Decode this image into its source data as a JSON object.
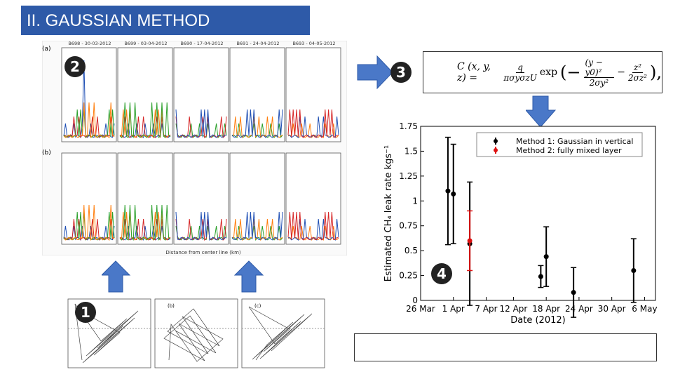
{
  "header": {
    "title": "II. GAUSSIAN METHOD"
  },
  "badges": [
    "1",
    "2",
    "3",
    "4"
  ],
  "profiles": {
    "panel_labels": [
      "(a)",
      "(b)"
    ],
    "flights": [
      "B698 - 30-03-2012",
      "B699 - 03-04-2012",
      "B690 - 17-04-2012",
      "B691 - 24-04-2012",
      "B693 - 04-05-2012"
    ],
    "xlabel": "Distance from center line (km)"
  },
  "maps": {
    "panel_labels": [
      "(a)",
      "(b)",
      "(c)"
    ]
  },
  "formula": {
    "lhs": "C (x, y, z) =",
    "num": "q",
    "den": "πσyσzU",
    "exp": "exp",
    "t1num": "(y − y0)²",
    "t1den": "2σy²",
    "t2num": "z²",
    "t2den": "2σz²"
  },
  "chart_data": {
    "type": "scatter",
    "xlabel": "Date (2012)",
    "ylabel": "Estimated CH₄ leak rate kgs⁻¹",
    "xlim": [
      "2012-03-26",
      "2012-05-08"
    ],
    "xticks": [
      {
        "value": "2012-03-26",
        "label": "26 Mar"
      },
      {
        "value": "2012-04-01",
        "label": "1 Apr"
      },
      {
        "value": "2012-04-07",
        "label": "7 Apr"
      },
      {
        "value": "2012-04-12",
        "label": "12 Apr"
      },
      {
        "value": "2012-04-18",
        "label": "18 Apr"
      },
      {
        "value": "2012-04-24",
        "label": "24 Apr"
      },
      {
        "value": "2012-04-30",
        "label": "30 Apr"
      },
      {
        "value": "2012-05-06",
        "label": "6 May"
      }
    ],
    "ylim": [
      0,
      1.75
    ],
    "yticks": [
      0,
      0.25,
      0.5,
      0.75,
      1,
      1.25,
      1.5,
      1.75
    ],
    "series": [
      {
        "name": "Method 1: Gaussian in vertical",
        "color": "#000000",
        "x": [
          "2012-03-31",
          "2012-04-01",
          "2012-04-04",
          "2012-04-17",
          "2012-04-18",
          "2012-04-23",
          "2012-05-04"
        ],
        "values": [
          1.1,
          1.07,
          0.57,
          0.24,
          0.44,
          0.08,
          0.3
        ],
        "errors": [
          0.54,
          0.5,
          0.62,
          0.11,
          0.3,
          0.25,
          0.32
        ]
      },
      {
        "name": "Method 2: fully mixed layer",
        "color": "#dd1111",
        "x": [
          "2012-04-04"
        ],
        "values": [
          0.6
        ],
        "errors": [
          0.3
        ]
      }
    ]
  }
}
